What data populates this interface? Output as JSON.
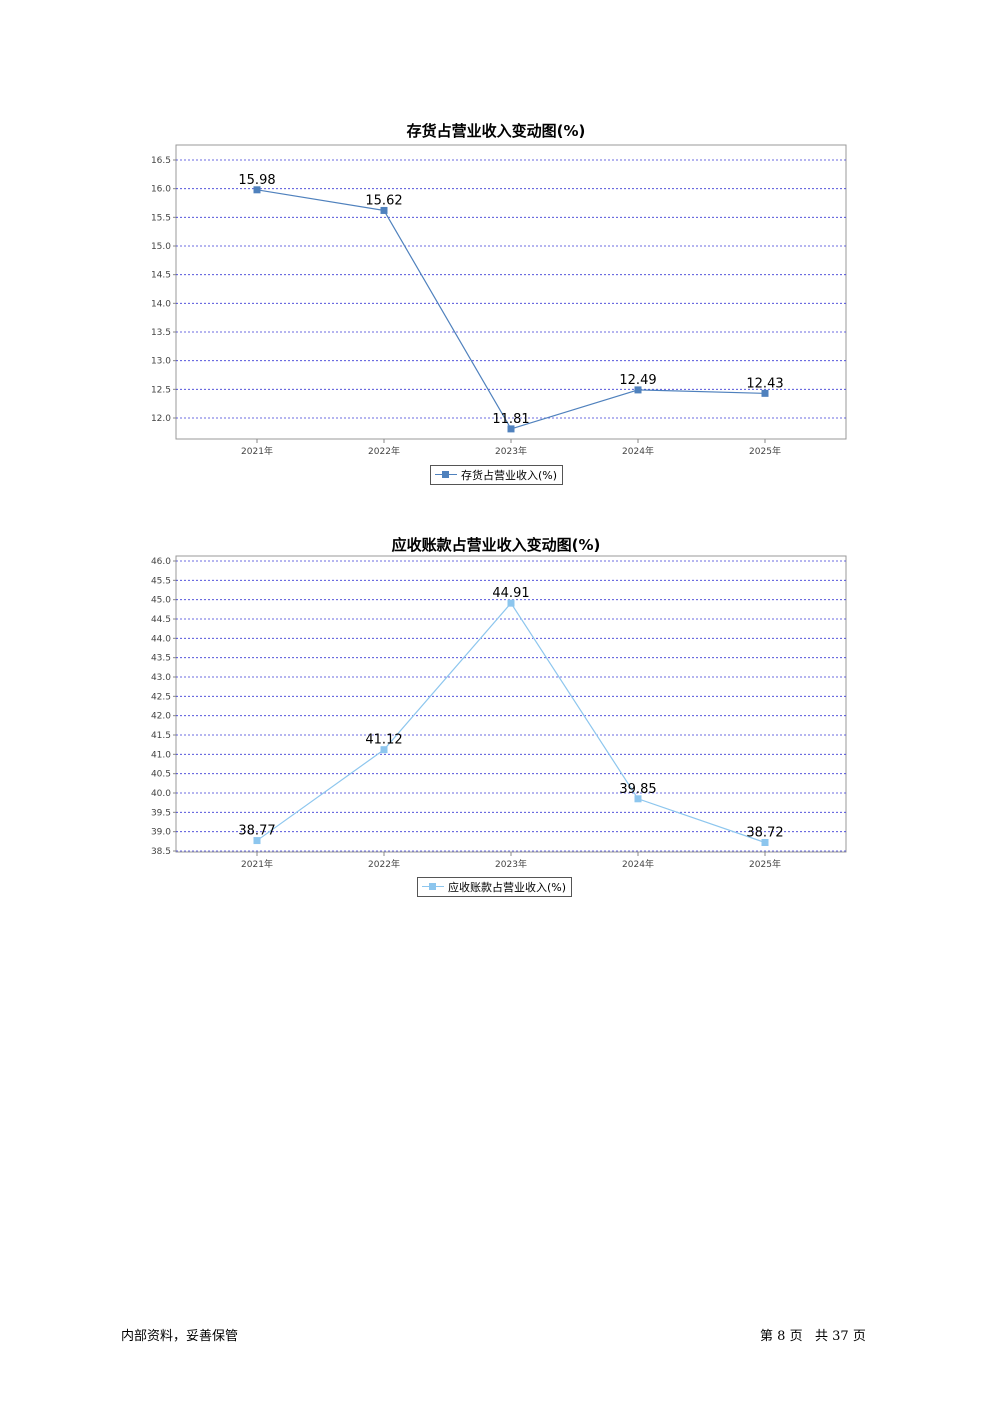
{
  "chart_data": [
    {
      "type": "line",
      "title": "存货占营业收入变动图(%)",
      "categories": [
        "2021年",
        "2022年",
        "2023年",
        "2024年",
        "2025年"
      ],
      "series": [
        {
          "name": "存货占营业收入(%)",
          "values": [
            15.98,
            15.62,
            11.81,
            12.49,
            12.43
          ],
          "color": "#4f81bd"
        }
      ],
      "yticks": [
        "16.5",
        "16.0",
        "15.5",
        "15.0",
        "14.5",
        "14.0",
        "13.5",
        "13.0",
        "12.5",
        "12.0"
      ],
      "data_labels": [
        "15.98",
        "15.62",
        "11.81",
        "12.49",
        "12.43"
      ],
      "ylim": [
        11.6,
        16.5
      ],
      "grid": true,
      "legend": "bottom-center"
    },
    {
      "type": "line",
      "title": "应收账款占营业收入变动图(%)",
      "categories": [
        "2021年",
        "2022年",
        "2023年",
        "2024年",
        "2025年"
      ],
      "series": [
        {
          "name": "应收账款占营业收入(%)",
          "values": [
            38.77,
            41.12,
            44.91,
            39.85,
            38.72
          ],
          "color": "#8dc6ee"
        }
      ],
      "yticks": [
        "46.0",
        "45.5",
        "45.0",
        "44.5",
        "44.0",
        "43.5",
        "43.0",
        "42.5",
        "42.0",
        "41.5",
        "41.0",
        "40.5",
        "40.0",
        "39.5",
        "39.0",
        "38.5"
      ],
      "data_labels": [
        "38.77",
        "41.12",
        "44.91",
        "39.85",
        "38.72"
      ],
      "ylim": [
        38.5,
        46.0
      ],
      "grid": true,
      "legend": "bottom-center"
    }
  ],
  "footer": {
    "left": "内部资料，妥善保管",
    "page_prefix": "第",
    "page_number": "8",
    "page_unit": "页",
    "total_prefix": "共",
    "total_pages": "37",
    "total_unit": "页"
  }
}
